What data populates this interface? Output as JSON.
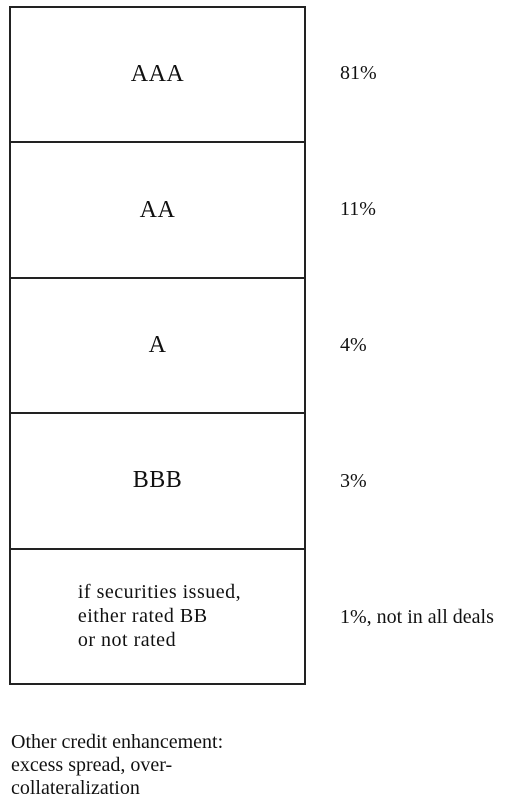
{
  "tranches": [
    {
      "label": "AAA",
      "share": "81%"
    },
    {
      "label": "AA",
      "share": "11%"
    },
    {
      "label": "A",
      "share": "4%"
    },
    {
      "label": "BBB",
      "share": "3%"
    },
    {
      "label": "if securities issued,\neither rated BB\nor not rated",
      "share": "1%, not in all deals"
    }
  ],
  "footnote": "Other credit enhancement:\nexcess spread, over-\ncollateralization"
}
